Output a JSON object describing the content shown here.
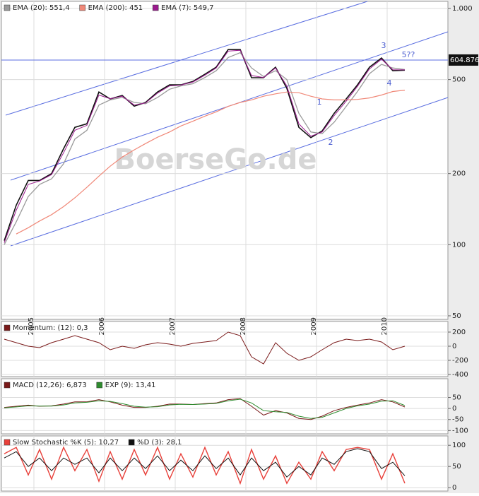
{
  "chart_data": [
    {
      "type": "line",
      "log": true,
      "grid": true,
      "watermark": "BoerseGo.de",
      "xlim": [
        2004.54,
        2010.86
      ],
      "xticks": [
        2005,
        2006,
        2007,
        2008,
        2009,
        2010
      ],
      "ylim": [
        48.3,
        1071
      ],
      "yticks": [
        50,
        100,
        200,
        500,
        {
          "value": 1000,
          "label": "1.000"
        }
      ],
      "price_line": {
        "value": 604.876,
        "label": "604.876"
      },
      "annotations": [
        {
          "text": "1",
          "x": 2009.04,
          "y": 400
        },
        {
          "text": "2",
          "x": 2009.2,
          "y": 270
        },
        {
          "text": "3",
          "x": 2009.95,
          "y": 694
        },
        {
          "text": "4",
          "x": 2010.03,
          "y": 482
        },
        {
          "text": "5??",
          "x": 2010.3,
          "y": 634
        }
      ],
      "x": [
        2004.58,
        2004.75,
        2004.92,
        2005.08,
        2005.25,
        2005.42,
        2005.58,
        2005.75,
        2005.92,
        2006.08,
        2006.25,
        2006.42,
        2006.58,
        2006.75,
        2006.92,
        2007.08,
        2007.25,
        2007.42,
        2007.58,
        2007.75,
        2007.92,
        2008.08,
        2008.25,
        2008.42,
        2008.58,
        2008.75,
        2008.92,
        2009.08,
        2009.25,
        2009.42,
        2009.58,
        2009.75,
        2009.92,
        2010.08,
        2010.25
      ],
      "series": [
        {
          "color": "#111111",
          "width": 1.6,
          "values": [
            104,
            147,
            187,
            187,
            200,
            255,
            314,
            325,
            443,
            414,
            428,
            386,
            400,
            443,
            475,
            475,
            491,
            527,
            564,
            670,
            670,
            509,
            509,
            564,
            459,
            314,
            284,
            303,
            360,
            414,
            475,
            564,
            617,
            545,
            548
          ]
        },
        {
          "name": "EMA (20): 551,4",
          "color": "#9a9a9a",
          "width": 1.3,
          "values": [
            100,
            125,
            160,
            180,
            190,
            220,
            280,
            305,
            390,
            410,
            420,
            400,
            395,
            420,
            455,
            470,
            480,
            510,
            545,
            620,
            650,
            560,
            515,
            545,
            500,
            360,
            300,
            295,
            330,
            385,
            445,
            530,
            580,
            560,
            551.4
          ]
        },
        {
          "name": "EMA (200): 451",
          "color": "#f08878",
          "width": 1.2,
          "values": [
            null,
            111,
            118,
            126,
            134,
            145,
            158,
            175,
            195,
            215,
            235,
            252,
            268,
            285,
            300,
            318,
            333,
            350,
            365,
            385,
            400,
            410,
            425,
            435,
            443,
            440,
            425,
            414,
            410,
            410,
            412,
            418,
            430,
            445,
            451
          ]
        },
        {
          "name": "EMA (7): 549,7",
          "color": "#9b1b8e",
          "width": 1,
          "values": [
            102,
            140,
            180,
            186,
            198,
            245,
            305,
            320,
            430,
            415,
            425,
            390,
            398,
            438,
            470,
            474,
            488,
            522,
            560,
            660,
            665,
            520,
            510,
            560,
            470,
            325,
            288,
            300,
            352,
            405,
            468,
            555,
            610,
            550,
            549.7
          ]
        }
      ]
    },
    {
      "type": "line",
      "grid": true,
      "xlim": [
        2004.54,
        2010.86
      ],
      "ylim": [
        -430,
        350
      ],
      "yticks": [
        200,
        0,
        -200,
        -400
      ],
      "x": [
        2004.58,
        2004.75,
        2004.92,
        2005.08,
        2005.25,
        2005.42,
        2005.58,
        2005.75,
        2005.92,
        2006.08,
        2006.25,
        2006.42,
        2006.58,
        2006.75,
        2006.92,
        2007.08,
        2007.25,
        2007.42,
        2007.58,
        2007.75,
        2007.92,
        2008.08,
        2008.25,
        2008.42,
        2008.58,
        2008.75,
        2008.92,
        2009.08,
        2009.25,
        2009.42,
        2009.58,
        2009.75,
        2009.92,
        2010.08,
        2010.25
      ],
      "series": [
        {
          "name": "Momentum: (12): 0,3",
          "color": "#7a1a1a",
          "width": 1,
          "values": [
            100,
            50,
            0,
            -20,
            50,
            100,
            150,
            100,
            50,
            -50,
            0,
            -30,
            20,
            50,
            30,
            0,
            40,
            60,
            80,
            200,
            150,
            -150,
            -250,
            50,
            -100,
            -200,
            -150,
            -50,
            50,
            100,
            80,
            100,
            60,
            -50,
            0.3
          ]
        }
      ]
    },
    {
      "type": "line",
      "grid": true,
      "xlim": [
        2004.54,
        2010.86
      ],
      "ylim": [
        -115,
        135
      ],
      "yticks": [
        50,
        0,
        -50,
        -100
      ],
      "x": [
        2004.58,
        2004.75,
        2004.92,
        2005.08,
        2005.25,
        2005.42,
        2005.58,
        2005.75,
        2005.92,
        2006.08,
        2006.25,
        2006.42,
        2006.58,
        2006.75,
        2006.92,
        2007.08,
        2007.25,
        2007.42,
        2007.58,
        2007.75,
        2007.92,
        2008.08,
        2008.25,
        2008.42,
        2008.58,
        2008.75,
        2008.92,
        2009.08,
        2009.25,
        2009.42,
        2009.58,
        2009.75,
        2009.92,
        2010.08,
        2010.25
      ],
      "series": [
        {
          "name": "MACD (12,26): 6,873",
          "color": "#7a1a1a",
          "width": 1,
          "values": [
            5,
            10,
            15,
            10,
            12,
            20,
            30,
            30,
            40,
            30,
            15,
            5,
            5,
            10,
            20,
            20,
            18,
            22,
            25,
            40,
            45,
            10,
            -30,
            -10,
            -20,
            -45,
            -50,
            -35,
            -10,
            5,
            15,
            25,
            40,
            30,
            6.873
          ]
        },
        {
          "name": "EXP (9): 13,41",
          "color": "#2e8b2e",
          "width": 1,
          "values": [
            3,
            7,
            12,
            11,
            11,
            16,
            25,
            28,
            35,
            32,
            22,
            10,
            6,
            8,
            16,
            19,
            18,
            20,
            23,
            35,
            42,
            25,
            -10,
            -15,
            -18,
            -35,
            -45,
            -40,
            -20,
            0,
            12,
            20,
            33,
            35,
            13.41
          ]
        }
      ]
    },
    {
      "type": "line",
      "grid": true,
      "xlim": [
        2004.54,
        2010.86
      ],
      "ylim": [
        -8,
        122
      ],
      "yticks": [
        100,
        50,
        0
      ],
      "x": [
        2004.58,
        2004.75,
        2004.92,
        2005.08,
        2005.25,
        2005.42,
        2005.58,
        2005.75,
        2005.92,
        2006.08,
        2006.25,
        2006.42,
        2006.58,
        2006.75,
        2006.92,
        2007.08,
        2007.25,
        2007.42,
        2007.58,
        2007.75,
        2007.92,
        2008.08,
        2008.25,
        2008.42,
        2008.58,
        2008.75,
        2008.92,
        2009.08,
        2009.25,
        2009.42,
        2009.58,
        2009.75,
        2009.92,
        2010.08,
        2010.25
      ],
      "series": [
        {
          "name": "Slow Stochastic %K (5): 10,27",
          "color": "#e8403a",
          "width": 1.4,
          "values": [
            80,
            95,
            30,
            90,
            20,
            95,
            40,
            90,
            15,
            85,
            20,
            90,
            30,
            95,
            20,
            80,
            25,
            95,
            30,
            85,
            10,
            90,
            20,
            75,
            10,
            60,
            20,
            85,
            40,
            90,
            95,
            90,
            20,
            80,
            10.27
          ]
        },
        {
          "name": "%D (3): 28,1",
          "color": "#111111",
          "width": 1,
          "values": [
            70,
            85,
            50,
            70,
            40,
            70,
            55,
            70,
            35,
            70,
            40,
            70,
            45,
            75,
            40,
            65,
            40,
            75,
            45,
            70,
            30,
            70,
            40,
            60,
            25,
            50,
            30,
            70,
            55,
            85,
            92,
            85,
            45,
            60,
            28.1
          ]
        }
      ]
    }
  ]
}
